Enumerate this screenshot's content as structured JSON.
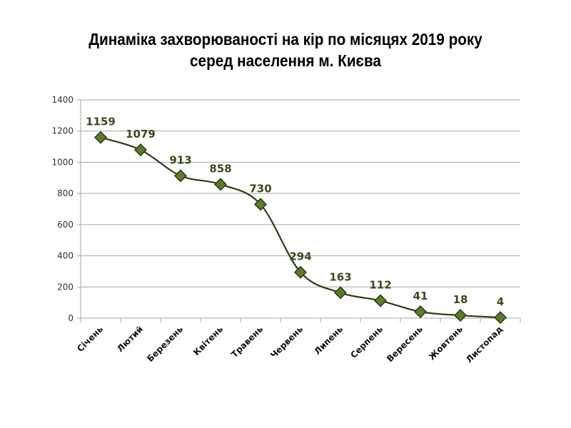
{
  "title": {
    "line1": "Динаміка захворюваності на кір по місяцях 2019 року",
    "line2": "серед населення м. Києва"
  },
  "colors": {
    "line": "#2f3a14",
    "marker_fill": "#5e7a2a",
    "marker_stroke": "#2f3a14",
    "grid": "#a6a6a6",
    "label": "#3a4a1e"
  },
  "chart_data": {
    "type": "line",
    "title": "Динаміка захворюваності на кір по місяцях 2019 року серед населення м. Києва",
    "xlabel": "",
    "ylabel": "",
    "categories": [
      "Січень",
      "Лютий",
      "Березень",
      "Квітень",
      "Травень",
      "Червень",
      "Липень",
      "Серпень",
      "Вересень",
      "Жовтень",
      "Листопад"
    ],
    "series": [
      {
        "name": "Кір",
        "values": [
          1159,
          1079,
          913,
          858,
          730,
          294,
          163,
          112,
          41,
          18,
          4
        ]
      }
    ],
    "ylim": [
      0,
      1400
    ],
    "yticks": [
      0,
      200,
      400,
      600,
      800,
      1000,
      1200,
      1400
    ],
    "grid": true,
    "legend": "none",
    "marker": "diamond",
    "smooth": true
  }
}
